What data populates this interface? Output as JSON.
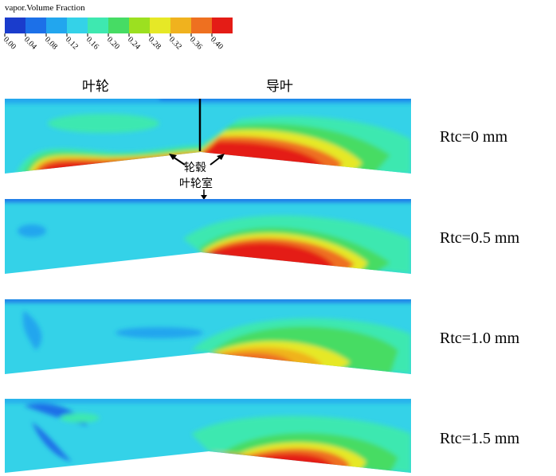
{
  "legend": {
    "title": "vapor.Volume Fraction",
    "colors": [
      "#1a3ccc",
      "#1c70e8",
      "#22a6ee",
      "#34d2e8",
      "#3ee8b0",
      "#46dc64",
      "#9ce020",
      "#e6e826",
      "#f0b21e",
      "#ee7020",
      "#e41c16"
    ],
    "ticks": [
      "0.00",
      "0.04",
      "0.08",
      "0.12",
      "0.16",
      "0.20",
      "0.24",
      "0.28",
      "0.32",
      "0.36",
      "0.40"
    ]
  },
  "labels": {
    "impeller": "叶轮",
    "guide_vane": "导叶",
    "hub": "轮毂",
    "shroud": "叶轮室"
  },
  "panels": [
    {
      "caption": "Rtc=0 mm"
    },
    {
      "caption": "Rtc=0.5 mm"
    },
    {
      "caption": "Rtc=1.0 mm"
    },
    {
      "caption": "Rtc=1.5 mm"
    }
  ]
}
